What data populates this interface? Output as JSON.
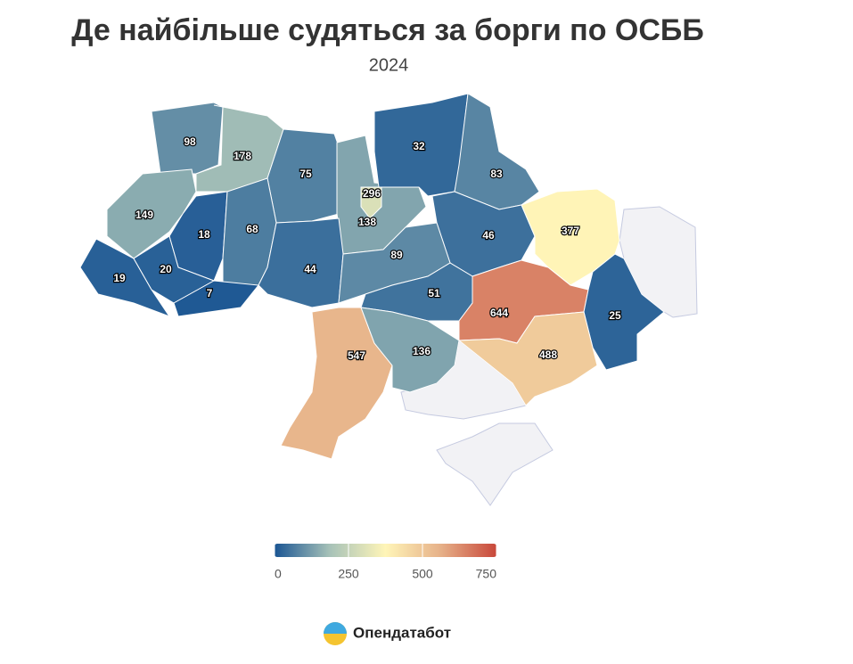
{
  "chart_data": {
    "type": "choropleth",
    "title": "Де найбільше судяться за борги по ОСББ",
    "subtitle": "2024",
    "values": [
      98,
      178,
      75,
      138,
      296,
      32,
      83,
      149,
      18,
      68,
      46,
      377,
      19,
      20,
      7,
      44,
      89,
      51,
      644,
      25,
      547,
      136,
      488
    ],
    "colorscale": [
      "#1a5593",
      "#a7c2b8",
      "#fff5b8",
      "#e6b088",
      "#c8473a"
    ],
    "legend": {
      "range": [
        0,
        750
      ],
      "ticks": [
        0,
        250,
        500,
        750
      ]
    },
    "source": "Опендатабот"
  }
}
